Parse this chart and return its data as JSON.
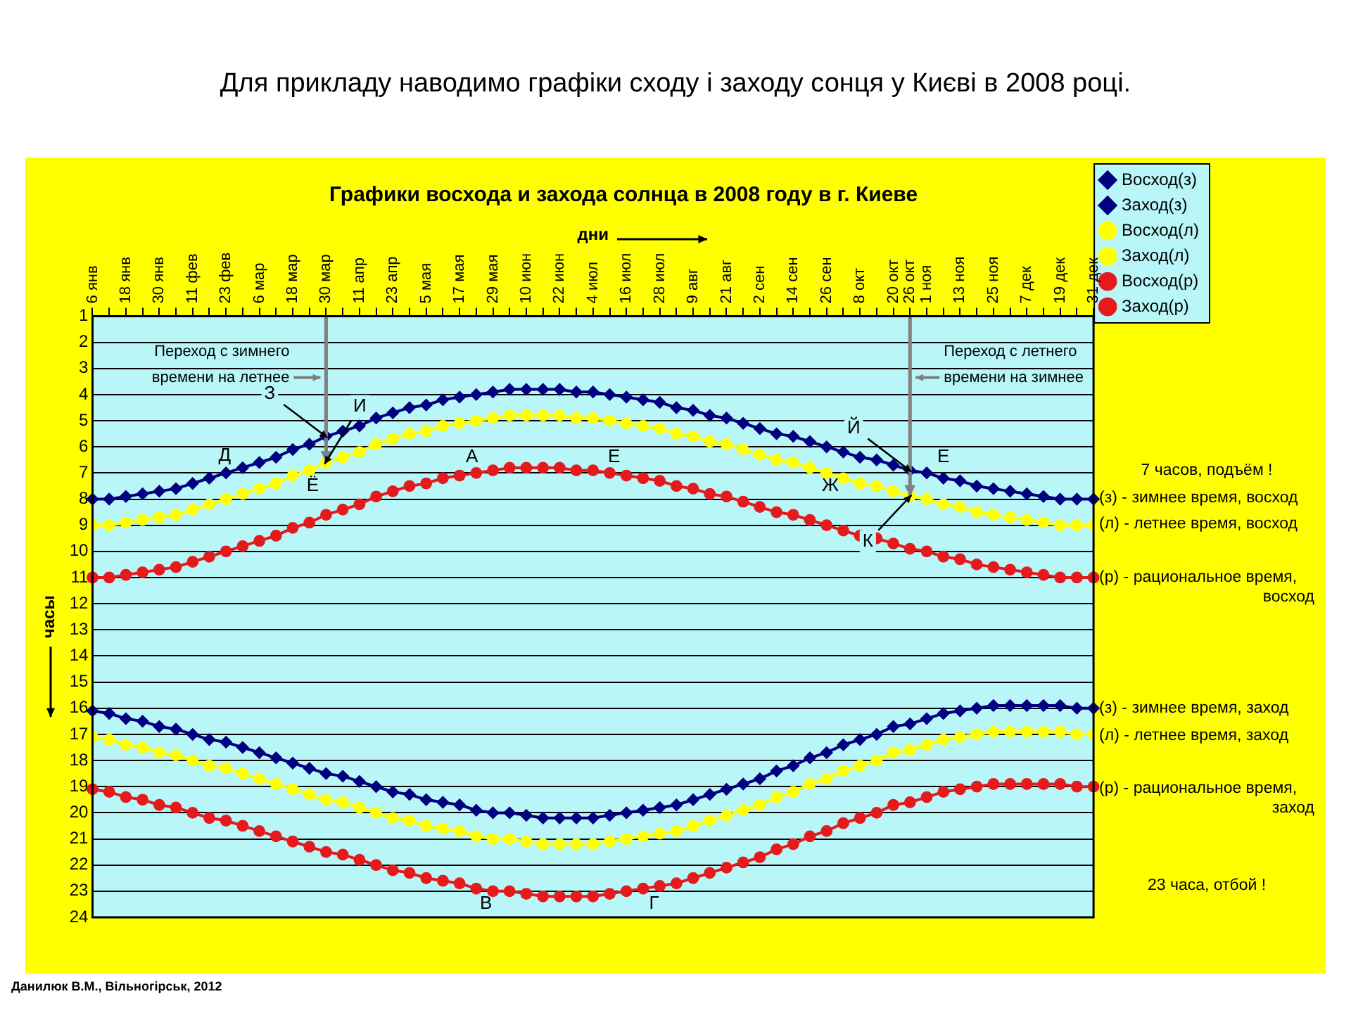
{
  "chart_data": {
    "type": "line",
    "title": "Для прикладу наводимо графіки сходу і заходу сонця у Києві в 2008 році.",
    "subtitle": "Графики восхода и захода солнца в 2008 году в г. Киеве",
    "xlabel": "дни",
    "ylabel": "часы",
    "categories": [
      "6 янв",
      null,
      "18 янв",
      null,
      "30 янв",
      null,
      "11 фев",
      null,
      "23 фев",
      null,
      "6 мар",
      null,
      "18 мар",
      null,
      "30 мар",
      null,
      "11 апр",
      null,
      "23 апр",
      null,
      "5 мая",
      null,
      "17 мая",
      null,
      "29 мая",
      null,
      "10 июн",
      null,
      "22 июн",
      null,
      "4 июл",
      null,
      "16 июл",
      null,
      "28 июл",
      null,
      "9 авг",
      null,
      "21 авг",
      null,
      "2 сен",
      null,
      "14 сен",
      null,
      "26 сен",
      null,
      "8 окт",
      null,
      "20 окт",
      "26 окт",
      "1 ноя",
      null,
      "13 ноя",
      null,
      "25 ноя",
      null,
      "7 дек",
      null,
      "19 дек",
      null,
      "31 дек"
    ],
    "ylim": [
      24,
      1
    ],
    "yticks": [
      1,
      2,
      3,
      4,
      5,
      6,
      7,
      8,
      9,
      10,
      11,
      12,
      13,
      14,
      15,
      16,
      17,
      18,
      19,
      20,
      21,
      22,
      23,
      24
    ],
    "grid": "y",
    "legend": "top right",
    "line_style": "solid",
    "series": [
      {
        "name": "Восход(з)",
        "color": "#000080",
        "marker": "diamond",
        "values": [
          8.0,
          8.0,
          7.9,
          7.8,
          7.7,
          7.6,
          7.4,
          7.2,
          7.0,
          6.8,
          6.6,
          6.4,
          6.1,
          5.9,
          5.6,
          5.4,
          5.2,
          4.9,
          4.7,
          4.5,
          4.4,
          4.2,
          4.1,
          4.0,
          3.9,
          3.8,
          3.8,
          3.8,
          3.8,
          3.9,
          3.9,
          4.0,
          4.1,
          4.2,
          4.3,
          4.5,
          4.6,
          4.8,
          4.9,
          5.1,
          5.3,
          5.5,
          5.6,
          5.8,
          6.0,
          6.2,
          6.4,
          6.5,
          6.7,
          6.9,
          7.0,
          7.2,
          7.3,
          7.5,
          7.6,
          7.7,
          7.8,
          7.9,
          8.0,
          8.0,
          8.0
        ]
      },
      {
        "name": "Заход(з)",
        "color": "#000080",
        "marker": "diamond",
        "values": [
          16.1,
          16.2,
          16.4,
          16.5,
          16.7,
          16.8,
          17.0,
          17.2,
          17.3,
          17.5,
          17.7,
          17.9,
          18.1,
          18.3,
          18.5,
          18.6,
          18.8,
          19.0,
          19.2,
          19.3,
          19.5,
          19.6,
          19.7,
          19.9,
          20.0,
          20.0,
          20.1,
          20.2,
          20.2,
          20.2,
          20.2,
          20.1,
          20.0,
          19.9,
          19.8,
          19.7,
          19.5,
          19.3,
          19.1,
          18.9,
          18.7,
          18.4,
          18.2,
          17.9,
          17.7,
          17.4,
          17.2,
          17.0,
          16.7,
          16.6,
          16.4,
          16.2,
          16.1,
          16.0,
          15.9,
          15.9,
          15.9,
          15.9,
          15.9,
          16.0,
          16.0
        ]
      },
      {
        "name": "Восход(л)",
        "color": "#ffff00",
        "marker": "circle",
        "values": [
          9.0,
          9.0,
          8.9,
          8.8,
          8.7,
          8.6,
          8.4,
          8.2,
          8.0,
          7.8,
          7.6,
          7.4,
          7.1,
          6.9,
          6.6,
          6.4,
          6.2,
          5.9,
          5.7,
          5.5,
          5.4,
          5.2,
          5.1,
          5.0,
          4.9,
          4.8,
          4.8,
          4.8,
          4.8,
          4.9,
          4.9,
          5.0,
          5.1,
          5.2,
          5.3,
          5.5,
          5.6,
          5.8,
          5.9,
          6.1,
          6.3,
          6.5,
          6.6,
          6.8,
          7.0,
          7.2,
          7.4,
          7.5,
          7.7,
          7.9,
          8.0,
          8.2,
          8.3,
          8.5,
          8.6,
          8.7,
          8.8,
          8.9,
          9.0,
          9.0,
          9.0
        ]
      },
      {
        "name": "Заход(л)",
        "color": "#ffff00",
        "marker": "circle",
        "values": [
          17.1,
          17.2,
          17.4,
          17.5,
          17.7,
          17.8,
          18.0,
          18.2,
          18.3,
          18.5,
          18.7,
          18.9,
          19.1,
          19.3,
          19.5,
          19.6,
          19.8,
          20.0,
          20.2,
          20.3,
          20.5,
          20.6,
          20.7,
          20.9,
          21.0,
          21.0,
          21.1,
          21.2,
          21.2,
          21.2,
          21.2,
          21.1,
          21.0,
          20.9,
          20.8,
          20.7,
          20.5,
          20.3,
          20.1,
          19.9,
          19.7,
          19.4,
          19.2,
          18.9,
          18.7,
          18.4,
          18.2,
          18.0,
          17.7,
          17.6,
          17.4,
          17.2,
          17.1,
          17.0,
          16.9,
          16.9,
          16.9,
          16.9,
          16.9,
          17.0,
          17.0
        ]
      },
      {
        "name": "Восход(р)",
        "color": "#e41a1c",
        "marker": "circle",
        "values": [
          11.0,
          11.0,
          10.9,
          10.8,
          10.7,
          10.6,
          10.4,
          10.2,
          10.0,
          9.8,
          9.6,
          9.4,
          9.1,
          8.9,
          8.6,
          8.4,
          8.2,
          7.9,
          7.7,
          7.5,
          7.4,
          7.2,
          7.1,
          7.0,
          6.9,
          6.8,
          6.8,
          6.8,
          6.8,
          6.9,
          6.9,
          7.0,
          7.1,
          7.2,
          7.3,
          7.5,
          7.6,
          7.8,
          7.9,
          8.1,
          8.3,
          8.5,
          8.6,
          8.8,
          9.0,
          9.2,
          9.4,
          9.5,
          9.7,
          9.9,
          10.0,
          10.2,
          10.3,
          10.5,
          10.6,
          10.7,
          10.8,
          10.9,
          11.0,
          11.0,
          11.0
        ]
      },
      {
        "name": "Заход(р)",
        "color": "#e41a1c",
        "marker": "circle",
        "values": [
          19.1,
          19.2,
          19.4,
          19.5,
          19.7,
          19.8,
          20.0,
          20.2,
          20.3,
          20.5,
          20.7,
          20.9,
          21.1,
          21.3,
          21.5,
          21.6,
          21.8,
          22.0,
          22.2,
          22.3,
          22.5,
          22.6,
          22.7,
          22.9,
          23.0,
          23.0,
          23.1,
          23.2,
          23.2,
          23.2,
          23.2,
          23.1,
          23.0,
          22.9,
          22.8,
          22.7,
          22.5,
          22.3,
          22.1,
          21.9,
          21.7,
          21.4,
          21.2,
          20.9,
          20.7,
          20.4,
          20.2,
          20.0,
          19.7,
          19.6,
          19.4,
          19.2,
          19.1,
          19.0,
          18.9,
          18.9,
          18.9,
          18.9,
          18.9,
          19.0,
          19.0
        ]
      }
    ],
    "ref_lines": [
      {
        "axis": "x",
        "value": "30 мар",
        "label": "Переход с зимнего времени на летнее",
        "color": "#808080"
      },
      {
        "axis": "x",
        "value": "26 окт",
        "label": "Переход с летнего времени на зимнее",
        "color": "#808080"
      }
    ],
    "annotations": [
      {
        "text": "З",
        "x": "30 мар",
        "y": 5.6
      },
      {
        "text": "И",
        "x": "30 мар",
        "y": 6.6
      },
      {
        "text": "Й",
        "x": "26 окт",
        "y": 6.9
      },
      {
        "text": "К",
        "x": "26 окт",
        "y": 7.9
      },
      "Д",
      "Ё",
      "А",
      "Е",
      "Ж",
      "Е",
      "В",
      "Г",
      "7 часов, подъём !",
      "(з) - зимнее время, восход",
      "(л) - летнее время, восход",
      "(р) - рациональное время, восход",
      "(з) - зимнее время, заход",
      "(л) - летнее время, заход",
      "(р) - рациональное время, заход",
      "23 часа, отбой !",
      "Данилюк В.М., Вільногірськ, 2012"
    ]
  }
}
